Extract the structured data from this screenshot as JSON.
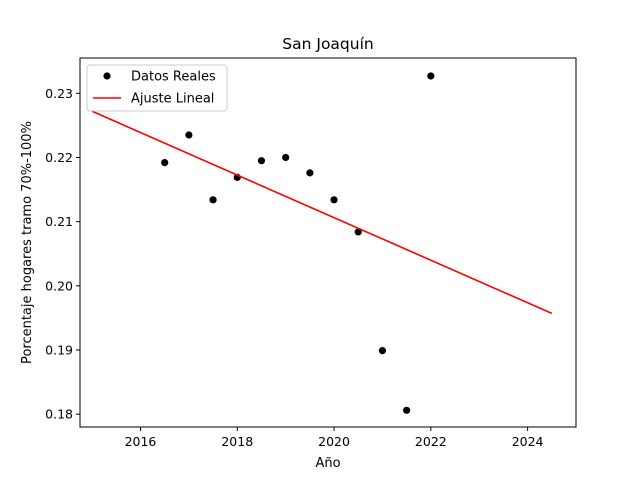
{
  "chart_data": {
    "type": "scatter",
    "title": "San Joaquín",
    "xlabel": "Año",
    "ylabel": "Porcentaje hogares tramo 70%-100%",
    "xlim": [
      2014.75,
      2025.0
    ],
    "ylim": [
      0.178,
      0.2355
    ],
    "x_ticks": [
      2016,
      2018,
      2020,
      2022,
      2024
    ],
    "x_tick_labels": [
      "2016",
      "2018",
      "2020",
      "2022",
      "2024"
    ],
    "y_ticks": [
      0.18,
      0.19,
      0.2,
      0.21,
      0.22,
      0.23
    ],
    "y_tick_labels": [
      "0.18",
      "0.19",
      "0.20",
      "0.21",
      "0.22",
      "0.23"
    ],
    "grid": false,
    "legend_position": "top-left",
    "series": [
      {
        "name": "Datos Reales",
        "kind": "scatter",
        "color": "#000000",
        "points": [
          {
            "x": 2016.5,
            "y": 0.2192
          },
          {
            "x": 2017.0,
            "y": 0.2235
          },
          {
            "x": 2017.5,
            "y": 0.2134
          },
          {
            "x": 2018.0,
            "y": 0.2169
          },
          {
            "x": 2018.5,
            "y": 0.2195
          },
          {
            "x": 2019.0,
            "y": 0.22
          },
          {
            "x": 2019.5,
            "y": 0.2176
          },
          {
            "x": 2020.0,
            "y": 0.2134
          },
          {
            "x": 2020.5,
            "y": 0.2084
          },
          {
            "x": 2021.0,
            "y": 0.1899
          },
          {
            "x": 2021.5,
            "y": 0.1806
          },
          {
            "x": 2022.0,
            "y": 0.2327
          }
        ]
      },
      {
        "name": "Ajuste Lineal",
        "kind": "line",
        "color": "#ff0000",
        "points": [
          {
            "x": 2015.0,
            "y": 0.2272
          },
          {
            "x": 2024.5,
            "y": 0.1957
          }
        ]
      }
    ]
  }
}
